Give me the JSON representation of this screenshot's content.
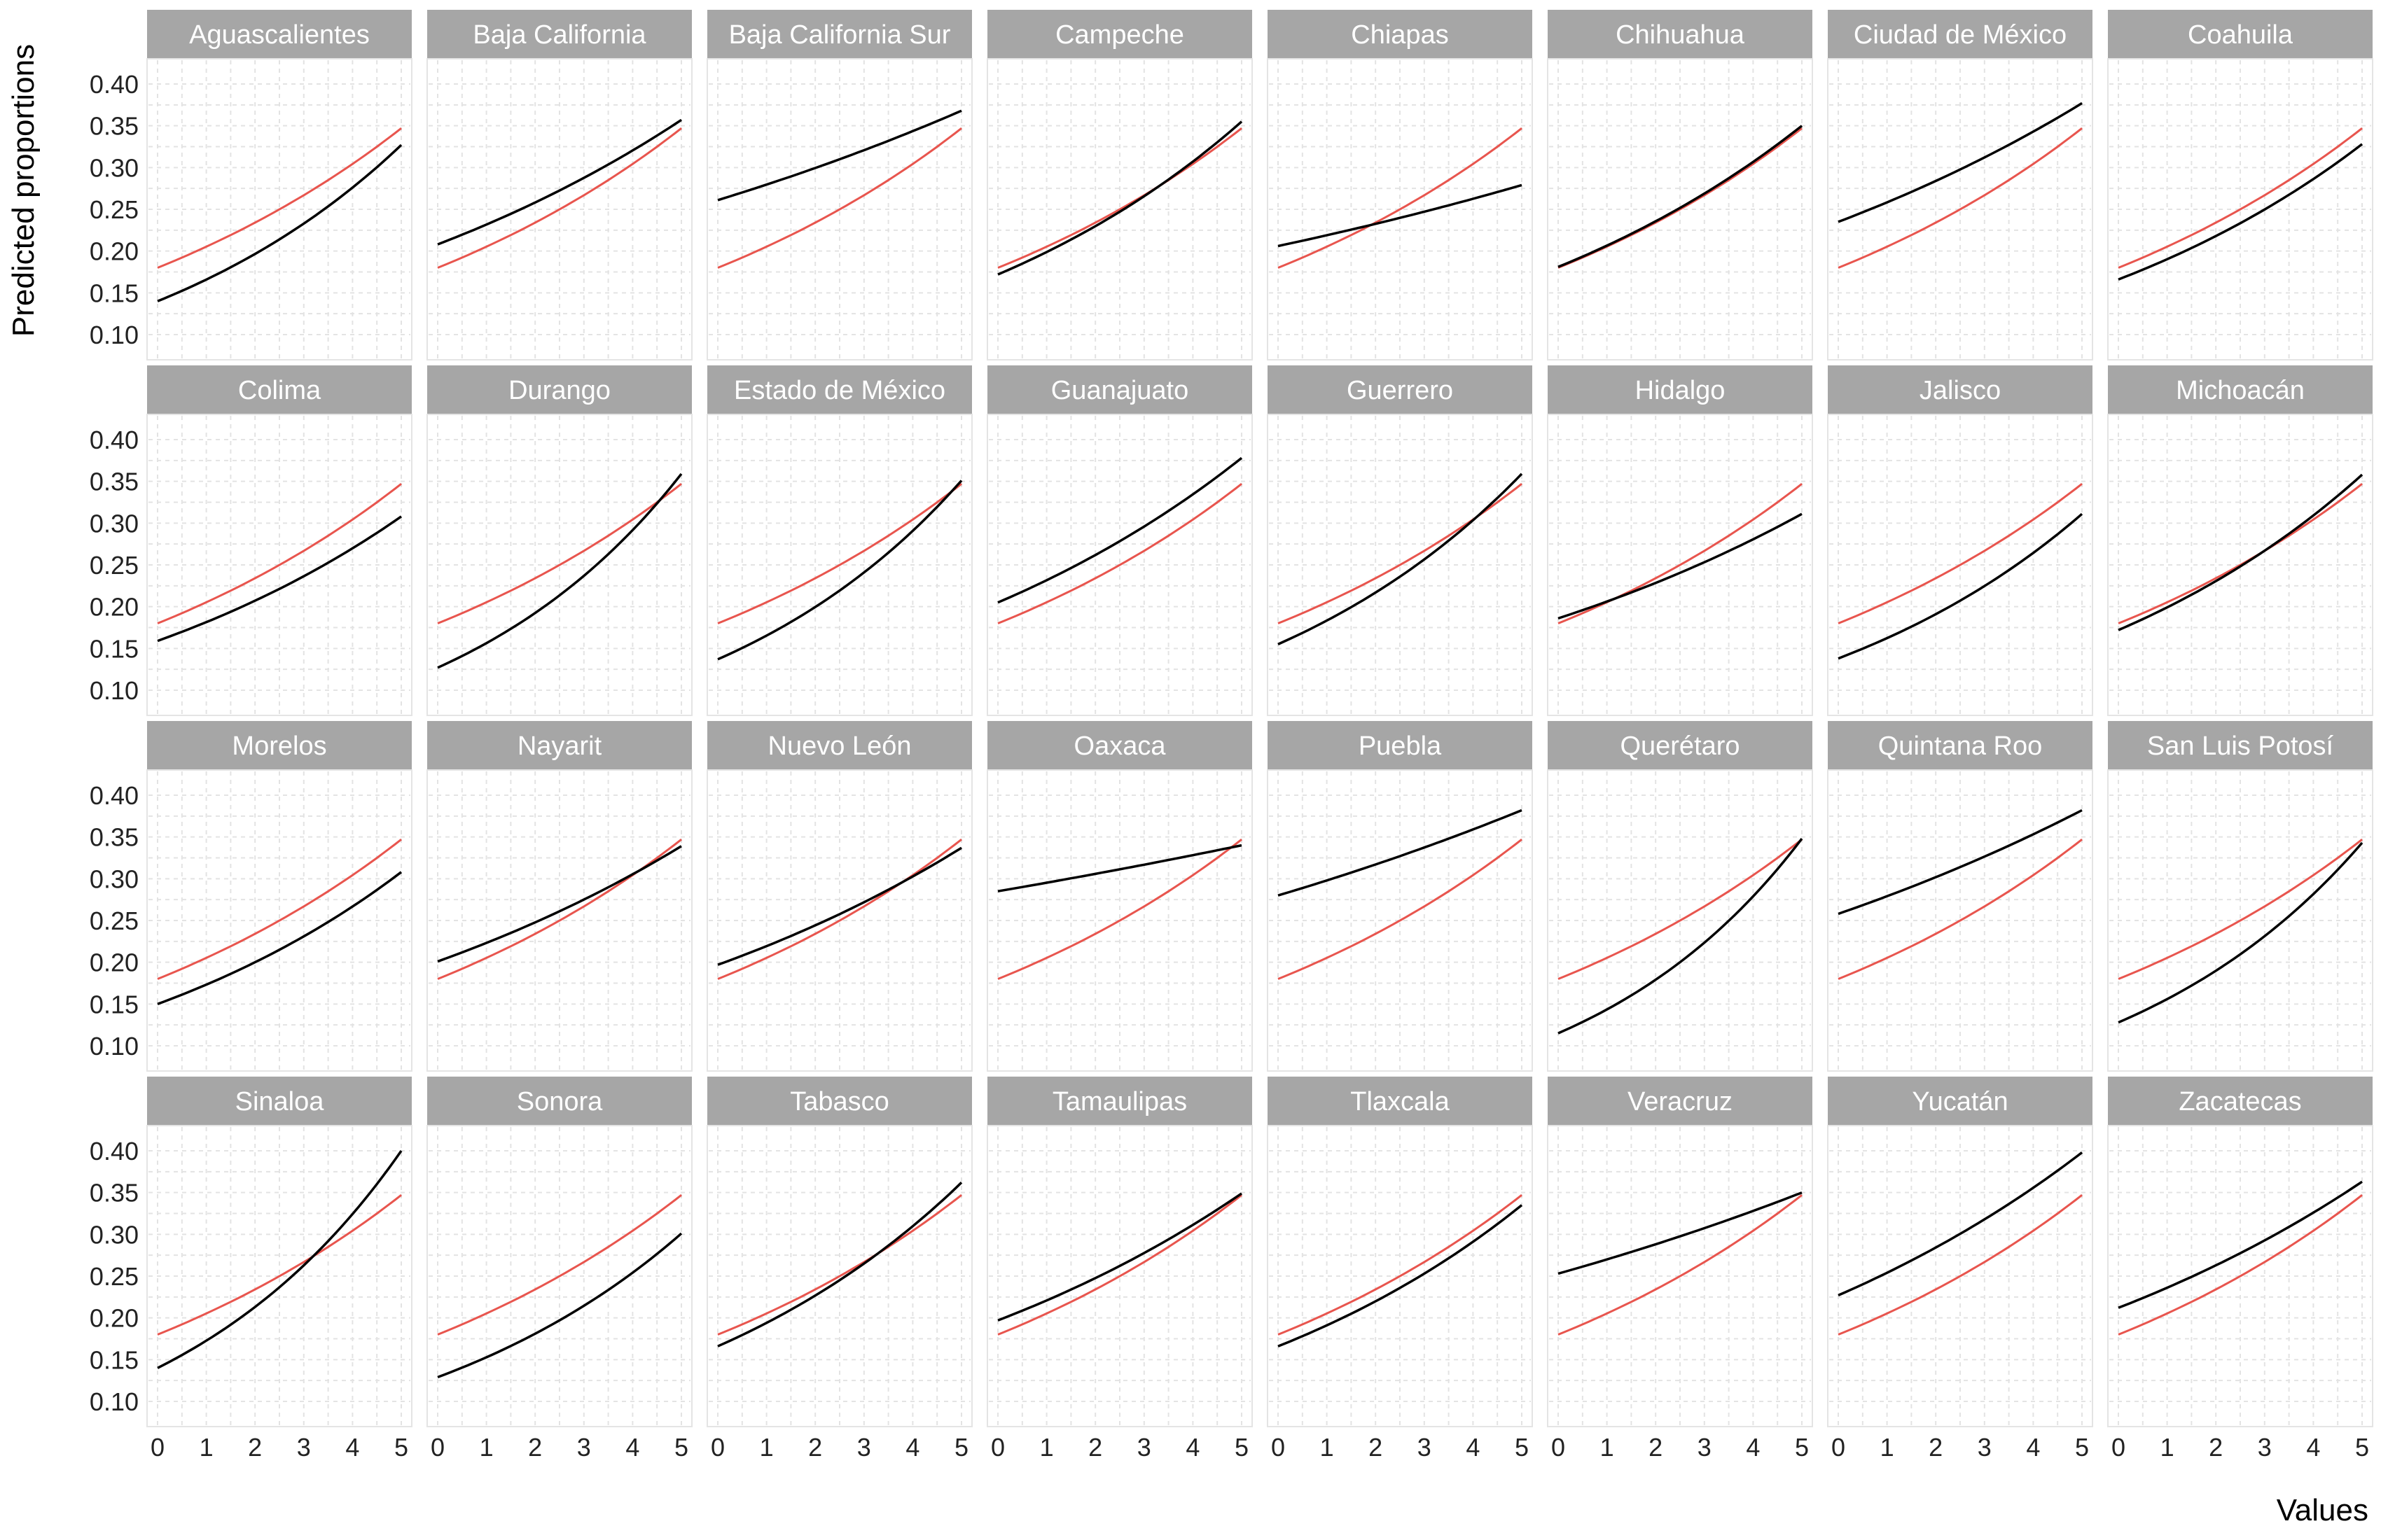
{
  "chart_data": {
    "type": "line",
    "xlabel": "Values",
    "ylabel": "Predicted proportions",
    "xlim": [
      0,
      5
    ],
    "ylim": [
      0.1,
      0.4
    ],
    "x_ticks": [
      "0",
      "1",
      "2",
      "3",
      "4",
      "5"
    ],
    "y_ticks": [
      "0.10",
      "0.15",
      "0.20",
      "0.25",
      "0.30",
      "0.35",
      "0.40"
    ],
    "grid": true,
    "colors": {
      "state": "#000000",
      "reference": "#e8554e",
      "strip": "#a6a6a6",
      "grid": "#e3e3e3"
    },
    "reference": {
      "start": 0.18,
      "end": 0.347
    },
    "panels": [
      {
        "title": "Aguascalientes",
        "start": 0.14,
        "end": 0.327
      },
      {
        "title": "Baja California",
        "start": 0.208,
        "end": 0.357
      },
      {
        "title": "Baja California Sur",
        "start": 0.261,
        "end": 0.368
      },
      {
        "title": "Campeche",
        "start": 0.172,
        "end": 0.355
      },
      {
        "title": "Chiapas",
        "start": 0.206,
        "end": 0.279
      },
      {
        "title": "Chihuahua",
        "start": 0.181,
        "end": 0.35
      },
      {
        "title": "Ciudad de México",
        "start": 0.235,
        "end": 0.377
      },
      {
        "title": "Coahuila",
        "start": 0.166,
        "end": 0.328
      },
      {
        "title": "Colima",
        "start": 0.159,
        "end": 0.308
      },
      {
        "title": "Durango",
        "start": 0.127,
        "end": 0.359
      },
      {
        "title": "Estado de México",
        "start": 0.137,
        "end": 0.351
      },
      {
        "title": "Guanajuato",
        "start": 0.205,
        "end": 0.378
      },
      {
        "title": "Guerrero",
        "start": 0.155,
        "end": 0.359
      },
      {
        "title": "Hidalgo",
        "start": 0.186,
        "end": 0.311
      },
      {
        "title": "Jalisco",
        "start": 0.138,
        "end": 0.311
      },
      {
        "title": "Michoacán",
        "start": 0.172,
        "end": 0.358
      },
      {
        "title": "Morelos",
        "start": 0.15,
        "end": 0.308
      },
      {
        "title": "Nayarit",
        "start": 0.201,
        "end": 0.339
      },
      {
        "title": "Nuevo León",
        "start": 0.197,
        "end": 0.337
      },
      {
        "title": "Oaxaca",
        "start": 0.285,
        "end": 0.34
      },
      {
        "title": "Puebla",
        "start": 0.28,
        "end": 0.382
      },
      {
        "title": "Querétaro",
        "start": 0.115,
        "end": 0.348
      },
      {
        "title": "Quintana Roo",
        "start": 0.258,
        "end": 0.382
      },
      {
        "title": "San Luis Potosí",
        "start": 0.128,
        "end": 0.343
      },
      {
        "title": "Sinaloa",
        "start": 0.14,
        "end": 0.4
      },
      {
        "title": "Sonora",
        "start": 0.129,
        "end": 0.301
      },
      {
        "title": "Tabasco",
        "start": 0.166,
        "end": 0.362
      },
      {
        "title": "Tamaulipas",
        "start": 0.197,
        "end": 0.349
      },
      {
        "title": "Tlaxcala",
        "start": 0.166,
        "end": 0.335
      },
      {
        "title": "Veracruz",
        "start": 0.253,
        "end": 0.35
      },
      {
        "title": "Yucatán",
        "start": 0.227,
        "end": 0.398
      },
      {
        "title": "Zacatecas",
        "start": 0.212,
        "end": 0.363
      }
    ]
  }
}
